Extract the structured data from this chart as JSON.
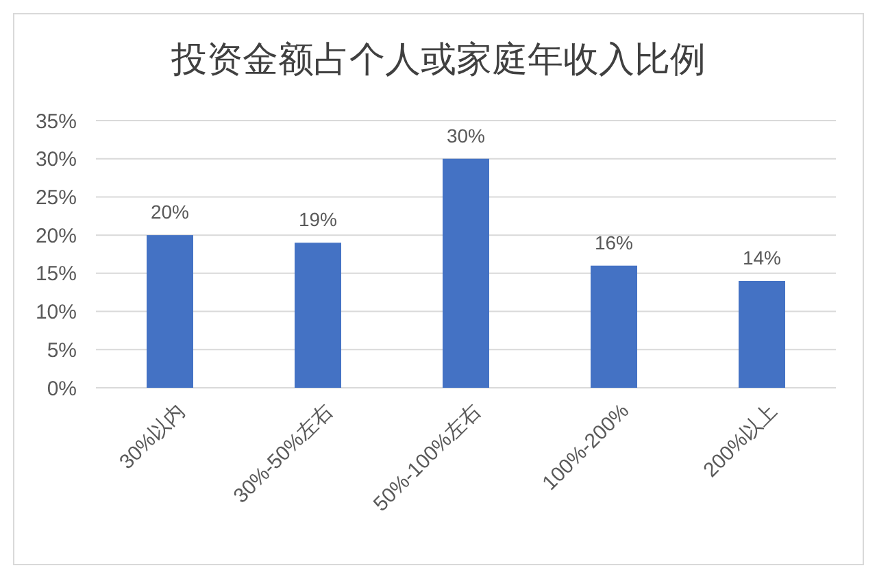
{
  "chart_data": {
    "type": "bar",
    "title": "投资金额占个人或家庭年收入比例",
    "categories": [
      "30%以内",
      "30%-50%左右",
      "50%-100%左右",
      "100%-200%",
      "200%以上"
    ],
    "values": [
      20,
      19,
      30,
      16,
      14
    ],
    "value_labels": [
      "20%",
      "19%",
      "30%",
      "16%",
      "14%"
    ],
    "color": "#4472c4",
    "ylim": [
      0,
      35
    ],
    "yticks": [
      {
        "value": 0,
        "label": "0%"
      },
      {
        "value": 5,
        "label": "5%"
      },
      {
        "value": 10,
        "label": "10%"
      },
      {
        "value": 15,
        "label": "15%"
      },
      {
        "value": 20,
        "label": "20%"
      },
      {
        "value": 25,
        "label": "25%"
      },
      {
        "value": 30,
        "label": "30%"
      },
      {
        "value": 35,
        "label": "35%"
      }
    ],
    "grid": "y"
  }
}
